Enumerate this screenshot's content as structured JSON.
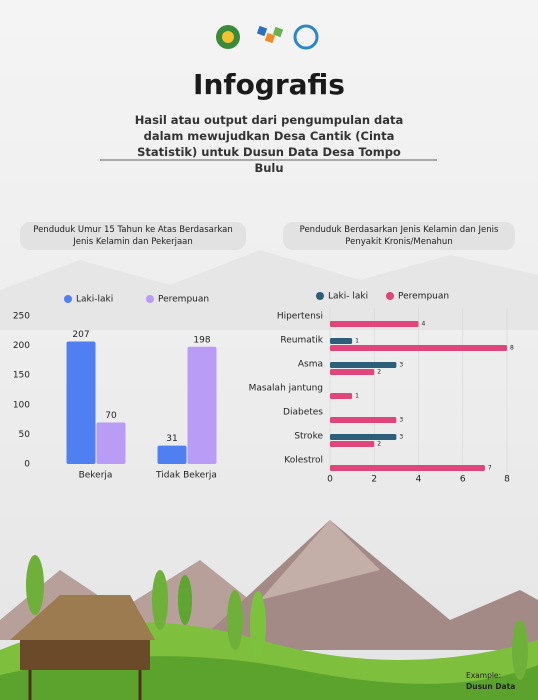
{
  "header": {
    "title": "Infografis",
    "subtitle": "Hasil atau output dari pengumpulan data dalam mewujudkan Desa Cantik (Cinta Statistik) untuk Dusun Data Desa Tompo Bulu"
  },
  "footer": {
    "label": "Example:",
    "value": "Dusun Data"
  },
  "chart_data": [
    {
      "type": "bar",
      "title": "Penduduk Umur 15 Tahun ke Atas Berdasarkan Jenis Kelamin dan Pekerjaan",
      "categories": [
        "Bekerja",
        "Tidak Bekerja"
      ],
      "series": [
        {
          "name": "Laki-laki",
          "color": "#4f7ff0",
          "values": [
            207,
            31
          ]
        },
        {
          "name": "Perempuan",
          "color": "#b99cf5",
          "values": [
            70,
            198
          ]
        }
      ],
      "ylim": [
        0,
        250
      ],
      "yticks": [
        0,
        50,
        100,
        150,
        200,
        250
      ],
      "grid": false,
      "legend": "top"
    },
    {
      "type": "bar",
      "orientation": "horizontal",
      "title": "Penduduk Berdasarkan Jenis Kelamin dan Jenis Penyakit Kronis/Menahun",
      "categories": [
        "Hipertensi",
        "Reumatik",
        "Asma",
        "Masalah jantung",
        "Diabetes",
        "Stroke",
        "Kolestrol"
      ],
      "series": [
        {
          "name": "Laki- laki",
          "color": "#2e5f7a",
          "values": [
            null,
            1,
            3,
            null,
            null,
            3,
            null
          ]
        },
        {
          "name": "Perempuan",
          "color": "#e0457b",
          "values": [
            4,
            8,
            2,
            1,
            3,
            2,
            7
          ]
        }
      ],
      "xlim": [
        0,
        8
      ],
      "xticks": [
        0,
        2,
        4,
        6,
        8
      ],
      "grid": true,
      "legend": "top"
    }
  ]
}
